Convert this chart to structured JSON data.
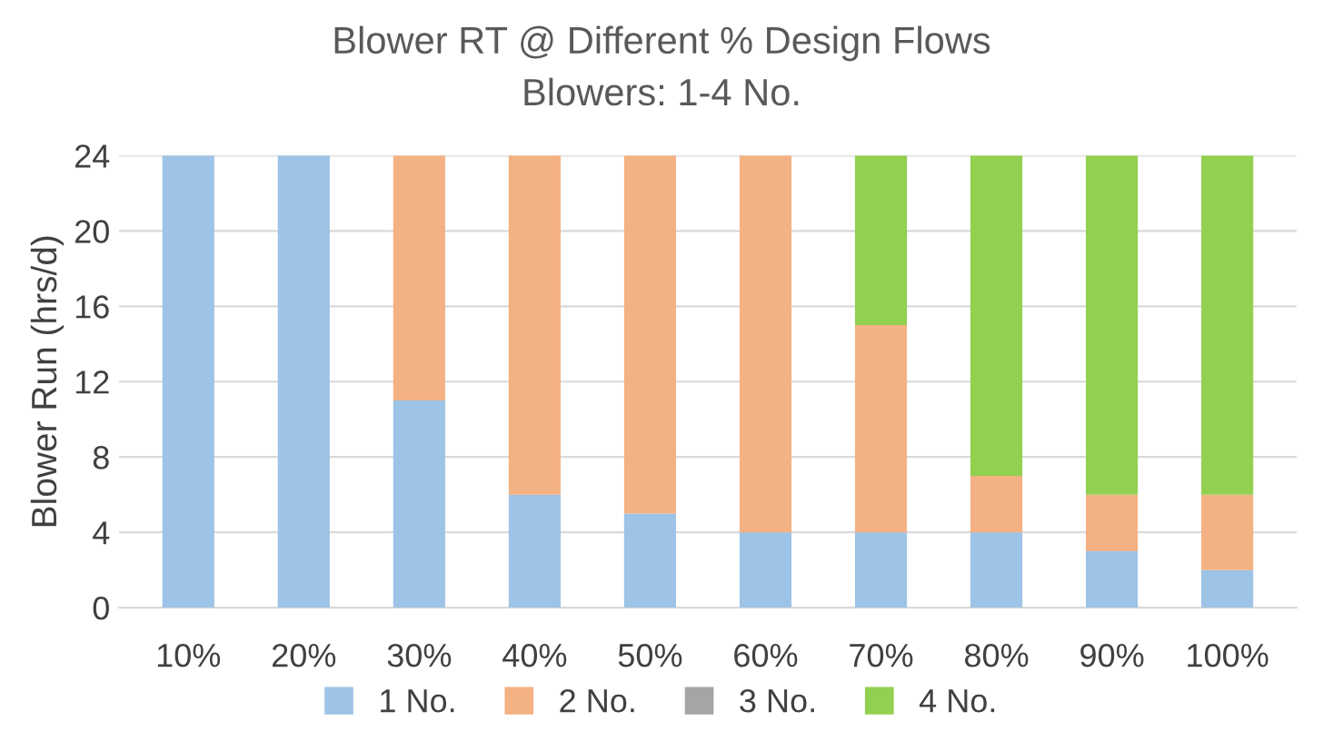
{
  "chart_data": {
    "type": "bar",
    "title": "Blower RT @ Different % Design Flows",
    "subtitle": "Blowers: 1-4 No.",
    "ylabel": "Blower Run (hrs/d)",
    "categories": [
      "10%",
      "20%",
      "30%",
      "40%",
      "50%",
      "60%",
      "70%",
      "80%",
      "90%",
      "100%"
    ],
    "stacked": true,
    "ylim": [
      0,
      24
    ],
    "yticks": [
      0,
      4,
      8,
      12,
      16,
      20,
      24
    ],
    "grid": "y",
    "legend": "bottom",
    "series": [
      {
        "name": "1 No.",
        "color": "#9dc3e6",
        "values": [
          24,
          24,
          11,
          6,
          5,
          4,
          4,
          4,
          3,
          2
        ]
      },
      {
        "name": "2 No.",
        "color": "#f4b183",
        "values": [
          0,
          0,
          13,
          18,
          19,
          20,
          11,
          3,
          3,
          4
        ]
      },
      {
        "name": "3 No.",
        "color": "#a5a5a5",
        "values": [
          0,
          0,
          0,
          0,
          0,
          0,
          0,
          0,
          0,
          0
        ]
      },
      {
        "name": "4 No.",
        "color": "#92d050",
        "values": [
          0,
          0,
          0,
          0,
          0,
          0,
          9,
          17,
          18,
          18
        ]
      }
    ]
  }
}
